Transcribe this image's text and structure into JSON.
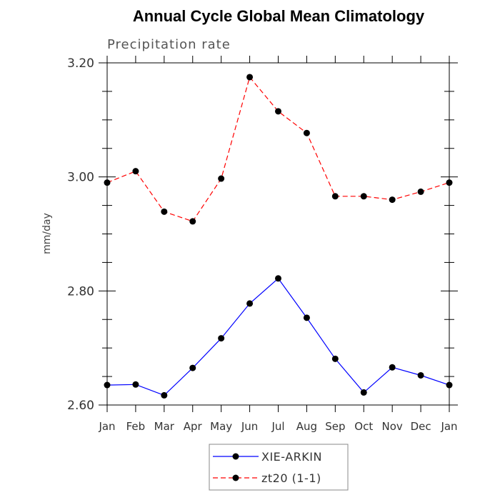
{
  "chart_data": {
    "type": "line",
    "title": "Annual Cycle Global Mean Climatology",
    "subtitle": "Precipitation rate",
    "ylabel": "mm/day",
    "xlabel": "",
    "categories": [
      "Jan",
      "Feb",
      "Mar",
      "Apr",
      "May",
      "Jun",
      "Jul",
      "Aug",
      "Sep",
      "Oct",
      "Nov",
      "Dec",
      "Jan"
    ],
    "ylim": [
      2.6,
      3.2
    ],
    "yticks": [
      "2.60",
      "2.80",
      "3.00",
      "3.20"
    ],
    "legend_position": "bottom-center",
    "series": [
      {
        "name": "XIE-ARKIN",
        "color": "#0000ff",
        "dash": "solid",
        "marker": "dot",
        "values": [
          2.635,
          2.636,
          2.617,
          2.665,
          2.717,
          2.778,
          2.822,
          2.753,
          2.681,
          2.622,
          2.666,
          2.652,
          2.635
        ]
      },
      {
        "name": "zt20 (1-1)",
        "color": "#ff0000",
        "dash": "dashed",
        "marker": "dot",
        "values": [
          2.99,
          3.01,
          2.939,
          2.922,
          2.997,
          3.175,
          3.115,
          3.077,
          2.966,
          2.966,
          2.96,
          2.974,
          2.99
        ]
      }
    ]
  }
}
